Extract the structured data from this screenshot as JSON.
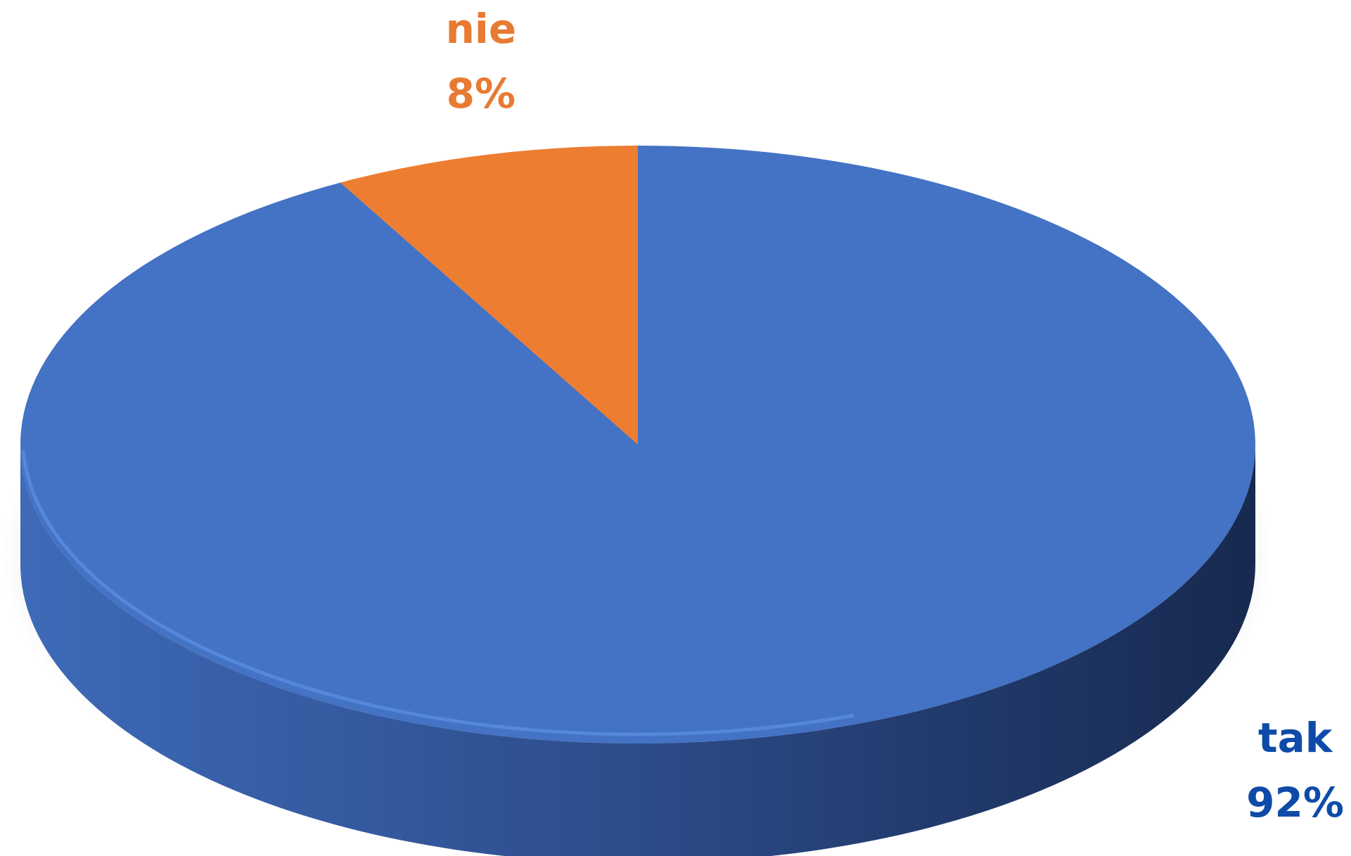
{
  "chart_data": {
    "type": "pie",
    "style": "3d",
    "slices": [
      {
        "label": "tak",
        "value": 92,
        "display": "92%",
        "color": "#4472C4",
        "label_color": "#0E4BA8"
      },
      {
        "label": "nie",
        "value": 8,
        "display": "8%",
        "color": "#ED7D31",
        "label_color": "#E87A31"
      }
    ]
  }
}
